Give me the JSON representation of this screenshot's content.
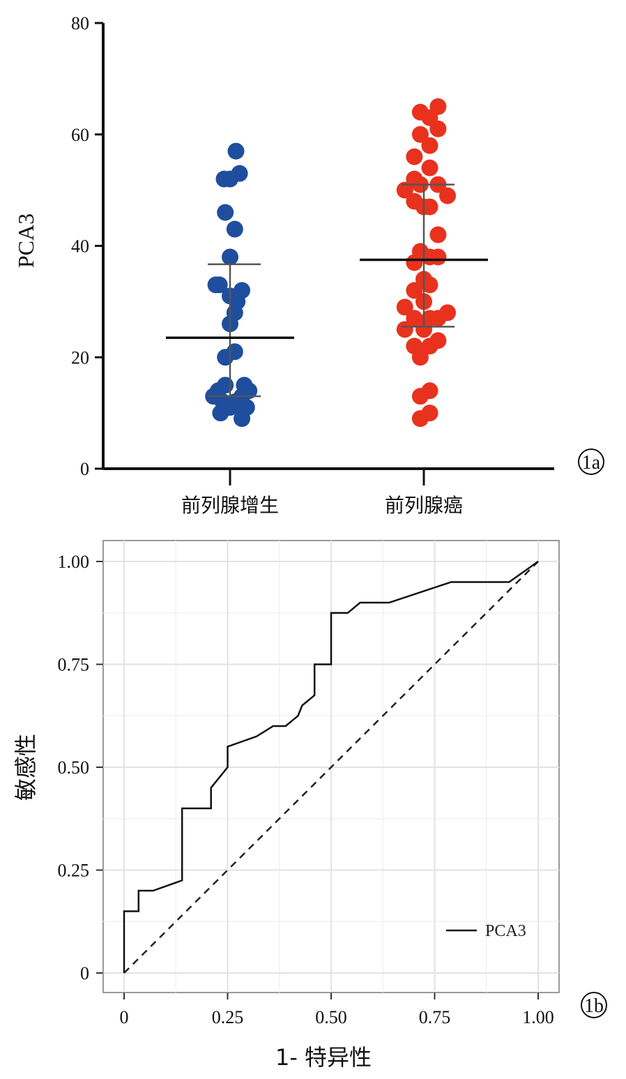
{
  "chart_data": [
    {
      "type": "scatter",
      "panel_label": "1a",
      "ylabel": "PCA3",
      "ylim": [
        0,
        80
      ],
      "yticks": [
        "0",
        "20",
        "40",
        "60",
        "80"
      ],
      "categories": [
        "前列腺增生",
        "前列腺癌"
      ],
      "series": [
        {
          "category": "前列腺增生",
          "color": "#1f4e9e",
          "mean": 23.5,
          "sd_upper": 36.7,
          "sd_lower": 13,
          "points": [
            [
              0.05,
              57
            ],
            [
              -0.05,
              52
            ],
            [
              0.0,
              52
            ],
            [
              0.08,
              53
            ],
            [
              -0.04,
              46
            ],
            [
              0.04,
              43
            ],
            [
              0.0,
              38
            ],
            [
              -0.09,
              33
            ],
            [
              -0.12,
              33
            ],
            [
              0.0,
              31
            ],
            [
              0.1,
              32
            ],
            [
              0.04,
              28
            ],
            [
              0.06,
              30
            ],
            [
              0.0,
              26
            ],
            [
              -0.04,
              20
            ],
            [
              0.04,
              21
            ],
            [
              -0.04,
              15
            ],
            [
              -0.14,
              13
            ],
            [
              -0.1,
              14
            ],
            [
              -0.06,
              12
            ],
            [
              0.04,
              12
            ],
            [
              0.1,
              13
            ],
            [
              0.12,
              15
            ],
            [
              0.16,
              14
            ],
            [
              -0.08,
              10
            ],
            [
              0.0,
              11
            ],
            [
              0.08,
              11
            ],
            [
              0.14,
              11
            ],
            [
              0.1,
              9
            ]
          ]
        },
        {
          "category": "前列腺癌",
          "color": "#e8321e",
          "mean": 37.5,
          "sd_upper": 51,
          "sd_lower": 25.5,
          "points": [
            [
              -0.03,
              64
            ],
            [
              0.05,
              63
            ],
            [
              0.12,
              65
            ],
            [
              -0.03,
              60
            ],
            [
              0.05,
              58
            ],
            [
              0.12,
              61
            ],
            [
              -0.08,
              56
            ],
            [
              0.05,
              54
            ],
            [
              -0.16,
              50
            ],
            [
              -0.08,
              52
            ],
            [
              -0.03,
              51
            ],
            [
              0.12,
              51
            ],
            [
              0.2,
              49
            ],
            [
              -0.08,
              48
            ],
            [
              0.0,
              47
            ],
            [
              0.05,
              47
            ],
            [
              0.12,
              42
            ],
            [
              -0.03,
              39
            ],
            [
              0.05,
              38
            ],
            [
              0.12,
              38
            ],
            [
              -0.08,
              37
            ],
            [
              0.0,
              34
            ],
            [
              0.05,
              33
            ],
            [
              -0.08,
              32
            ],
            [
              0.0,
              30
            ],
            [
              -0.16,
              29
            ],
            [
              -0.08,
              27
            ],
            [
              0.05,
              27
            ],
            [
              0.12,
              27
            ],
            [
              0.2,
              28
            ],
            [
              -0.16,
              25
            ],
            [
              0.0,
              25
            ],
            [
              -0.08,
              22
            ],
            [
              0.05,
              22
            ],
            [
              0.12,
              23
            ],
            [
              -0.03,
              20
            ],
            [
              -0.03,
              13
            ],
            [
              0.05,
              14
            ],
            [
              -0.03,
              9
            ],
            [
              0.05,
              10
            ]
          ]
        }
      ]
    },
    {
      "type": "line",
      "panel_label": "1b",
      "xlabel": "1- 特异性",
      "ylabel": "敏感性",
      "xlim": [
        0,
        1
      ],
      "ylim": [
        0,
        1
      ],
      "xticks": [
        "0",
        "0.25",
        "0.50",
        "0.75",
        "1.00"
      ],
      "yticks": [
        "0",
        "0.25",
        "0.50",
        "0.75",
        "1.00"
      ],
      "legend": "PCA3",
      "legend_position": "bottom-right",
      "grid": true,
      "series": [
        {
          "name": "PCA3",
          "x": [
            0,
            0,
            0.035,
            0.035,
            0.07,
            0.14,
            0.14,
            0.21,
            0.21,
            0.25,
            0.25,
            0.32,
            0.36,
            0.39,
            0.42,
            0.43,
            0.46,
            0.46,
            0.5,
            0.5,
            0.54,
            0.57,
            0.64,
            0.79,
            0.93,
            1.0
          ],
          "y": [
            0,
            0.15,
            0.15,
            0.2,
            0.2,
            0.225,
            0.4,
            0.4,
            0.45,
            0.5,
            0.55,
            0.575,
            0.6,
            0.6,
            0.625,
            0.65,
            0.675,
            0.75,
            0.75,
            0.875,
            0.875,
            0.9,
            0.9,
            0.95,
            0.95,
            1.0
          ]
        }
      ],
      "reference_line": {
        "x": [
          0,
          1
        ],
        "y": [
          0,
          1
        ],
        "style": "dashed"
      }
    }
  ]
}
